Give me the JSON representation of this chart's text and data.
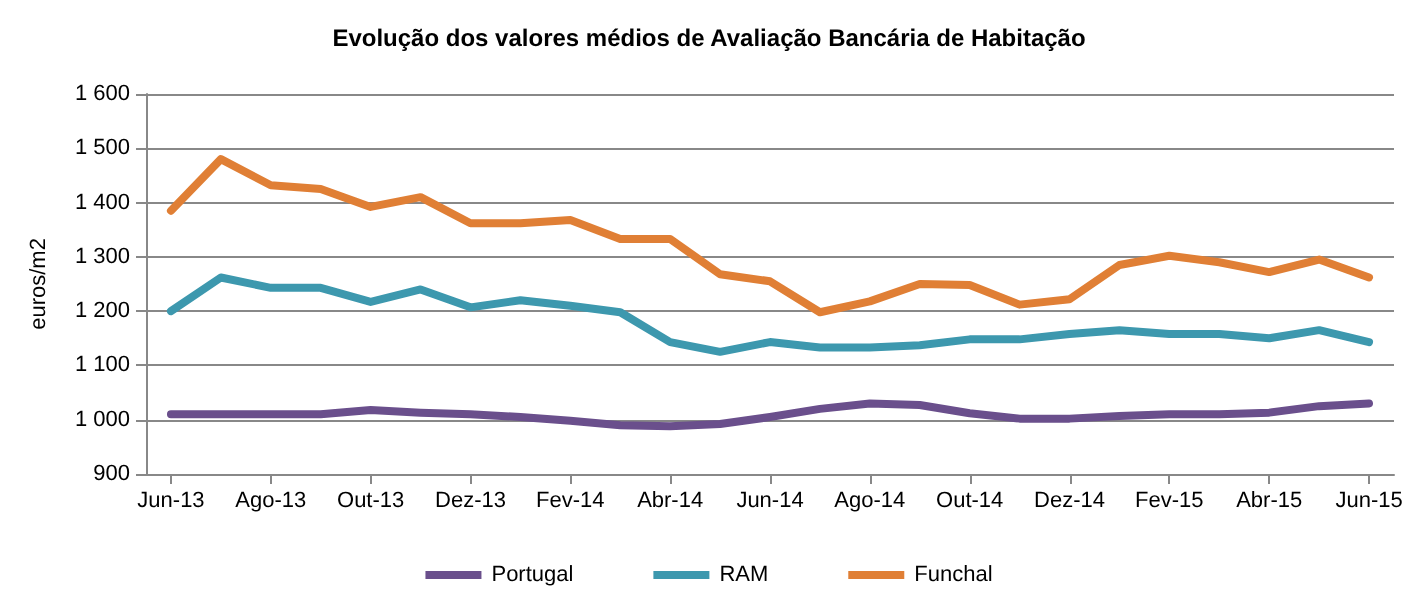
{
  "chart_data": {
    "type": "line",
    "title": "Evolução dos valores médios de Avaliação Bancária de Habitação",
    "ylabel": "euros/m2",
    "categories": [
      "Jun-13",
      null,
      "Ago-13",
      null,
      "Out-13",
      null,
      "Dez-13",
      null,
      "Fev-14",
      null,
      "Abr-14",
      null,
      "Jun-14",
      null,
      "Ago-14",
      null,
      "Out-14",
      null,
      "Dez-14",
      null,
      "Fev-15",
      null,
      "Abr-15",
      null,
      "Jun-15"
    ],
    "series": [
      {
        "name": "Portugal",
        "color": "#6a4f8c",
        "values": [
          1010,
          1010,
          1010,
          1010,
          1018,
          1013,
          1010,
          1005,
          998,
          990,
          988,
          992,
          1005,
          1020,
          1030,
          1027,
          1012,
          1002,
          1002,
          1007,
          1010,
          1010,
          1013,
          1025,
          1030
        ]
      },
      {
        "name": "RAM",
        "color": "#3d98ae",
        "values": [
          1200,
          1262,
          1243,
          1243,
          1217,
          1240,
          1207,
          1220,
          1210,
          1198,
          1143,
          1125,
          1143,
          1133,
          1133,
          1137,
          1148,
          1148,
          1158,
          1165,
          1158,
          1158,
          1150,
          1165,
          1143
        ]
      },
      {
        "name": "Funchal",
        "color": "#e07f35",
        "values": [
          1385,
          1480,
          1432,
          1425,
          1392,
          1410,
          1362,
          1362,
          1368,
          1333,
          1333,
          1268,
          1255,
          1198,
          1218,
          1250,
          1248,
          1212,
          1222,
          1285,
          1302,
          1290,
          1272,
          1295,
          1262
        ]
      }
    ],
    "ylim": [
      900,
      1600
    ],
    "yticks": [
      {
        "value": 900,
        "label": "900"
      },
      {
        "value": 1000,
        "label": "1 000"
      },
      {
        "value": 1100,
        "label": "1 100"
      },
      {
        "value": 1200,
        "label": "1 200"
      },
      {
        "value": 1300,
        "label": "1 300"
      },
      {
        "value": 1400,
        "label": "1 400"
      },
      {
        "value": 1500,
        "label": "1 500"
      },
      {
        "value": 1600,
        "label": "1 600"
      }
    ],
    "grid": "y",
    "legend": "bottom",
    "marker": "none",
    "line_style": "solid"
  }
}
